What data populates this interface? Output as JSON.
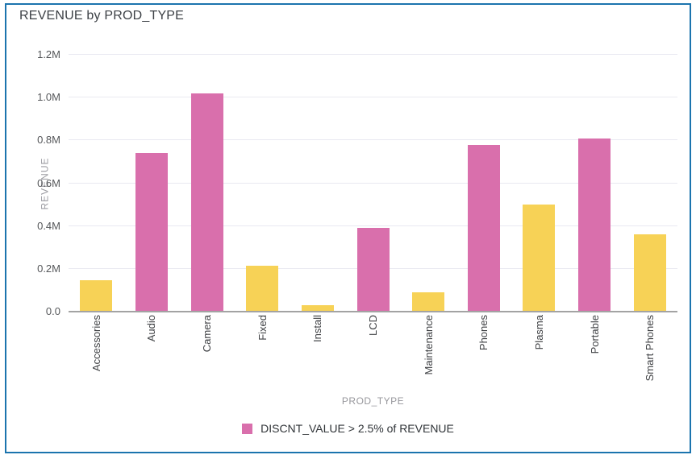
{
  "window": {
    "border_color": "#1b74ae",
    "background": "#ffffff"
  },
  "title": "REVENUE by PROD_TYPE",
  "chart_data": {
    "type": "bar",
    "title": "REVENUE by PROD_TYPE",
    "xlabel": "PROD_TYPE",
    "ylabel": "REVENUE",
    "ylim": [
      0,
      1200000
    ],
    "ytick_labels": [
      "0.0",
      "0.2M",
      "0.4M",
      "0.6M",
      "0.8M",
      "1.0M",
      "1.2M"
    ],
    "grid": true,
    "categories": [
      "Accessories",
      "Audio",
      "Camera",
      "Fixed",
      "Install",
      "LCD",
      "Maintenance",
      "Phones",
      "Plasma",
      "Portable",
      "Smart Phones"
    ],
    "values": [
      145000,
      740000,
      1020000,
      215000,
      30000,
      390000,
      90000,
      780000,
      500000,
      810000,
      360000
    ],
    "highlight_flags": [
      false,
      true,
      true,
      false,
      false,
      true,
      false,
      true,
      false,
      true,
      false
    ],
    "colors": {
      "highlight": "#d96fac",
      "normal": "#f7d256",
      "gridline": "#e9e9f1",
      "baseline": "#a3a3a3"
    },
    "legend": {
      "position": "bottom",
      "label": "DISCNT_VALUE > 2.5% of REVENUE",
      "swatch_color": "#d96fac"
    }
  }
}
